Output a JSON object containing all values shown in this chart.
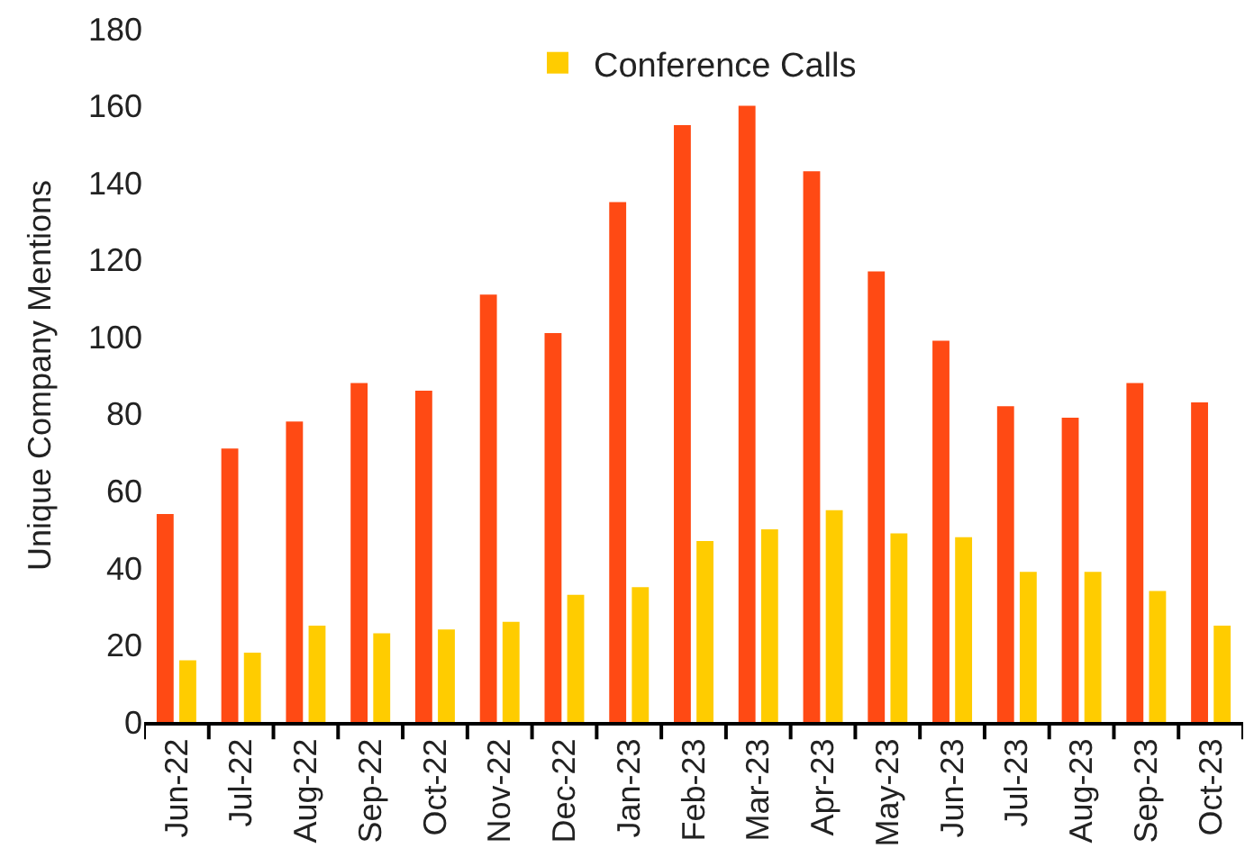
{
  "chart_data": {
    "type": "bar",
    "ylabel": "Unique Company Mentions",
    "categories": [
      "Jun-22",
      "Jul-22",
      "Aug-22",
      "Sep-22",
      "Oct-22",
      "Nov-22",
      "Dec-22",
      "Jan-23",
      "Feb-23",
      "Mar-23",
      "Apr-23",
      "May-23",
      "Jun-23",
      "Jul-23",
      "Aug-23",
      "Sep-23",
      "Oct-23"
    ],
    "series": [
      {
        "color": "#ff4a14",
        "values": [
          54,
          71,
          78,
          88,
          86,
          111,
          101,
          135,
          155,
          160,
          143,
          117,
          99,
          82,
          79,
          88,
          83
        ]
      },
      {
        "name": "Conference Calls",
        "color": "#ffcc00",
        "values": [
          16,
          18,
          25,
          23,
          24,
          26,
          33,
          35,
          47,
          50,
          55,
          49,
          48,
          39,
          39,
          34,
          25
        ]
      }
    ],
    "ylim": [
      0,
      180
    ],
    "yticks": [
      0,
      20,
      40,
      60,
      80,
      100,
      120,
      140,
      160,
      180
    ],
    "legend": "top"
  }
}
